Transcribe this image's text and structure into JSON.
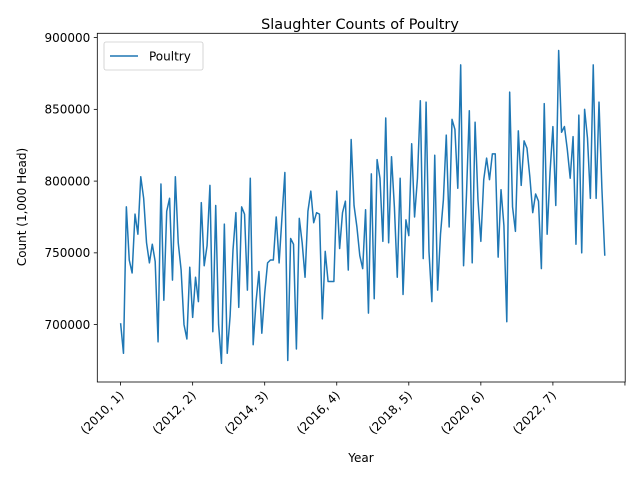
{
  "chart_data": {
    "type": "line",
    "title": "Slaughter Counts of Poultry",
    "xlabel": "Year",
    "ylabel": "Count (1,000 Head)",
    "grid": false,
    "legend_position": "upper-left",
    "x_tick_labels": [
      "(2010, 1)",
      "(2012, 2)",
      "(2014, 3)",
      "(2016, 4)",
      "(2018, 5)",
      "(2020, 6)",
      "(2022, 7)",
      ""
    ],
    "y_tick_labels": [
      "700000",
      "750000",
      "800000",
      "850000",
      "900000"
    ],
    "y_ticks": [
      700000,
      750000,
      800000,
      850000,
      900000
    ],
    "ylim": [
      660000,
      903000
    ],
    "x_range_months": [
      0,
      175
    ],
    "series": [
      {
        "name": "Poultry",
        "color": "#1f77b4",
        "values": [
          701000,
          680000,
          782000,
          745000,
          736000,
          777000,
          763000,
          803000,
          788000,
          757000,
          743000,
          756000,
          744000,
          688000,
          798000,
          717000,
          779000,
          788000,
          731000,
          803000,
          757000,
          738000,
          700000,
          690000,
          740000,
          705000,
          733000,
          716000,
          785000,
          741000,
          755000,
          797000,
          695000,
          783000,
          700000,
          673000,
          770000,
          680000,
          706000,
          752000,
          778000,
          712000,
          782000,
          777000,
          724000,
          802000,
          686000,
          716000,
          737000,
          694000,
          722000,
          743000,
          745000,
          745000,
          775000,
          743000,
          775000,
          806000,
          675000,
          760000,
          756000,
          683000,
          774000,
          757000,
          733000,
          779000,
          793000,
          771000,
          778000,
          777000,
          704000,
          751000,
          730000,
          730000,
          730000,
          793000,
          753000,
          778000,
          786000,
          738000,
          829000,
          783000,
          768000,
          748000,
          739000,
          780000,
          708000,
          805000,
          718000,
          815000,
          802000,
          758000,
          844000,
          757000,
          817000,
          782000,
          733000,
          802000,
          721000,
          773000,
          762000,
          826000,
          775000,
          802000,
          856000,
          746000,
          855000,
          751000,
          716000,
          818000,
          724000,
          763000,
          787000,
          832000,
          768000,
          843000,
          836000,
          795000,
          881000,
          741000,
          790000,
          849000,
          743000,
          841000,
          787000,
          758000,
          801000,
          816000,
          801000,
          819000,
          819000,
          747000,
          794000,
          769000,
          702000,
          862000,
          782000,
          765000,
          835000,
          797000,
          828000,
          823000,
          803000,
          778000,
          791000,
          786000,
          739000,
          854000,
          763000,
          806000,
          838000,
          783000,
          891000,
          834000,
          838000,
          822000,
          802000,
          831000,
          756000,
          846000,
          750000,
          850000,
          830000,
          788000,
          881000,
          788000,
          855000,
          795000,
          748000
        ]
      }
    ]
  }
}
